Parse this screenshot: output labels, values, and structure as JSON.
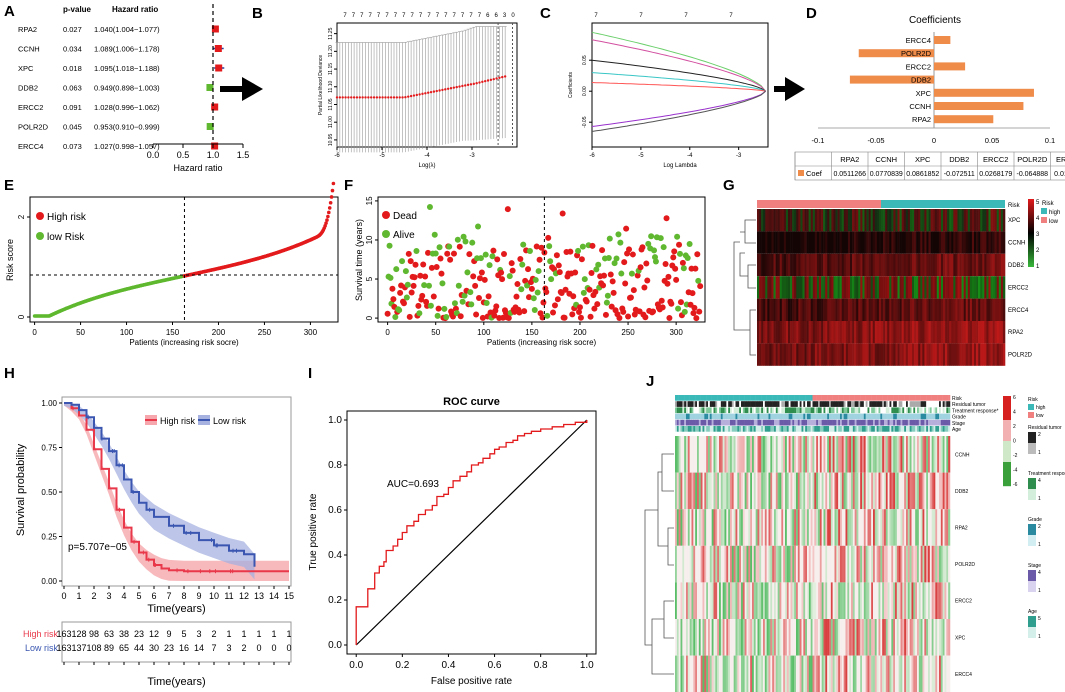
{
  "panels": {
    "a": "A",
    "b": "B",
    "c": "C",
    "d": "D",
    "e": "E",
    "f": "F",
    "g": "G",
    "h": "H",
    "i": "I",
    "j": "J"
  },
  "colors": {
    "red": "#e31a1c",
    "green": "#5fb82f",
    "orange": "#ef8c4a",
    "km_high": "#e8384a",
    "km_low": "#3a56b0",
    "teal": "#3bb9b9",
    "salmon": "#f08080",
    "ci_high": "#f6a7ad",
    "ci_low": "#a7b2e0"
  },
  "chart_data": [
    {
      "id": "A",
      "type": "forest",
      "headers": {
        "p": "p-value",
        "hr": "Hazard ratio"
      },
      "genes": [
        "RPA2",
        "CCNH",
        "XPC",
        "DDB2",
        "ERCC2",
        "POLR2D",
        "ERCC4"
      ],
      "p_values": [
        "0.027",
        "0.034",
        "0.018",
        "0.063",
        "0.091",
        "0.045",
        "0.073"
      ],
      "hr_text": [
        "1.040(1.004−1.077)",
        "1.089(1.006−1.178)",
        "1.095(1.018−1.188)",
        "0.949(0.898−1.003)",
        "1.028(0.996−1.062)",
        "0.953(0.910−0.999)",
        "1.027(0.998−1.057)"
      ],
      "hr": [
        1.04,
        1.089,
        1.095,
        0.949,
        1.028,
        0.953,
        1.027
      ],
      "ci_low": [
        1.004,
        1.006,
        1.018,
        0.898,
        0.996,
        0.91,
        0.998
      ],
      "ci_high": [
        1.077,
        1.178,
        1.188,
        1.003,
        1.062,
        0.999,
        1.057
      ],
      "xticks": [
        "0.0",
        "0.5",
        "1.0",
        "1.5"
      ],
      "xlabel": "Hazard ratio",
      "xlim": [
        0,
        1.5
      ]
    },
    {
      "id": "B",
      "type": "cv_deviance",
      "top_labels": [
        "7",
        "7",
        "7",
        "7",
        "7",
        "7",
        "7",
        "7",
        "7",
        "7",
        "7",
        "7",
        "7",
        "7",
        "7",
        "7",
        "7",
        "6",
        "6",
        "3",
        "0"
      ],
      "xticks": [
        "-6",
        "-5",
        "-4",
        "-3"
      ],
      "yticks": [
        "10.95",
        "11.00",
        "11.05",
        "11.10",
        "11.15",
        "11.20",
        "11.25"
      ],
      "xlabel": "Log(λ)",
      "ylabel": "Partial Likelihood Deviance",
      "xlim": [
        -6,
        -2.0
      ],
      "ylim": [
        10.93,
        11.28
      ]
    },
    {
      "id": "C",
      "type": "lasso_path",
      "top_labels": [
        "7",
        "7",
        "7",
        "7"
      ],
      "xticks": [
        "-6",
        "-5",
        "-4",
        "-3"
      ],
      "yticks": [
        "-0.05",
        "0.00",
        "0.05"
      ],
      "xlabel": "Log Lambda",
      "ylabel": "Coefficients",
      "xlim": [
        -6,
        -2.4
      ],
      "ylim": [
        -0.09,
        0.11
      ],
      "start_values": [
        0.095,
        0.083,
        0.05,
        0.03,
        0.014,
        -0.057,
        -0.065
      ],
      "series_colors": [
        "#6bcf6b",
        "#d24fa0",
        "#222222",
        "#3ac6c6",
        "#ff5555",
        "#9932cc",
        "#555555"
      ]
    },
    {
      "id": "D",
      "type": "bar",
      "title": "Coefficients",
      "categories": [
        "ERCC4",
        "POLR2D",
        "ERCC2",
        "DDB2",
        "XPC",
        "CCNH",
        "RPA2"
      ],
      "values": [
        0.014106,
        -0.064888,
        0.0268179,
        -0.072511,
        0.0861852,
        0.0770839,
        0.0511266
      ],
      "xticks": [
        "-0.1",
        "-0.05",
        "0",
        "0.05",
        "0.1"
      ],
      "xlim": [
        -0.1,
        0.1
      ],
      "table_header": [
        "RPA2",
        "CCNH",
        "XPC",
        "DDB2",
        "ERCC2",
        "POLR2D",
        "ERCC4"
      ],
      "table_row_label": "Coef",
      "table_values": [
        "0.0511266",
        "0.0770839",
        "0.0861852",
        "-0.072511",
        "0.0268179",
        "-0.064888",
        "0.014106"
      ]
    },
    {
      "id": "E",
      "type": "scatter",
      "legend": [
        "High risk",
        "low Risk"
      ],
      "xticks": [
        "0",
        "50",
        "100",
        "150",
        "200",
        "250",
        "300"
      ],
      "yticks": [
        "0",
        "2"
      ],
      "xlabel": "Patients (increasing risk socre)",
      "ylabel": "Risk score",
      "xlim": [
        -5,
        330
      ],
      "ylim": [
        -0.1,
        2.4
      ],
      "n": 326,
      "cutoff": 163
    },
    {
      "id": "F",
      "type": "scatter",
      "legend": [
        "Dead",
        "Alive"
      ],
      "xticks": [
        "0",
        "50",
        "100",
        "150",
        "200",
        "250",
        "300"
      ],
      "yticks": [
        "0",
        "5",
        "10",
        "15"
      ],
      "xlabel": "Patients (increasing risk socre)",
      "ylabel": "Survival time (years)",
      "xlim": [
        -10,
        330
      ],
      "ylim": [
        -0.5,
        15.5
      ],
      "cutoff": 163
    },
    {
      "id": "G",
      "type": "heatmap",
      "rows": [
        "XPC",
        "CCNH",
        "DDB2",
        "ERCC2",
        "ERCC4",
        "RPA2",
        "POLR2D"
      ],
      "annotation": "Risk",
      "legend_title": "Risk",
      "legend_items": [
        "high",
        "low"
      ],
      "scale_ticks": [
        "5",
        "4",
        "3",
        "2",
        "1"
      ]
    },
    {
      "id": "H",
      "type": "km",
      "legend": [
        "High risk",
        "Low risk"
      ],
      "pvalue": "p=5.707e−05",
      "xticks": [
        "0",
        "1",
        "2",
        "3",
        "4",
        "5",
        "6",
        "7",
        "8",
        "9",
        "10",
        "11",
        "12",
        "13",
        "14",
        "15"
      ],
      "yticks": [
        "0.00",
        "0.25",
        "0.50",
        "0.75",
        "1.00"
      ],
      "xlabel": "Time(years)",
      "ylabel": "Survival probability",
      "xlim": [
        0,
        15
      ],
      "ylim": [
        0,
        1
      ],
      "high_curve": [
        [
          0,
          1.0
        ],
        [
          0.5,
          0.97
        ],
        [
          1,
          0.93
        ],
        [
          1.5,
          0.85
        ],
        [
          2,
          0.74
        ],
        [
          2.5,
          0.63
        ],
        [
          3,
          0.52
        ],
        [
          3.5,
          0.4
        ],
        [
          4,
          0.3
        ],
        [
          4.5,
          0.22
        ],
        [
          5,
          0.16
        ],
        [
          5.5,
          0.12
        ],
        [
          6,
          0.09
        ],
        [
          6.5,
          0.07
        ],
        [
          7,
          0.06
        ],
        [
          8,
          0.055
        ],
        [
          10,
          0.055
        ],
        [
          12,
          0.055
        ],
        [
          15,
          0.055
        ]
      ],
      "low_curve": [
        [
          0,
          1.0
        ],
        [
          0.5,
          0.99
        ],
        [
          1,
          0.96
        ],
        [
          1.5,
          0.92
        ],
        [
          2,
          0.86
        ],
        [
          2.5,
          0.8
        ],
        [
          3,
          0.73
        ],
        [
          3.5,
          0.65
        ],
        [
          4,
          0.57
        ],
        [
          4.5,
          0.5
        ],
        [
          5,
          0.44
        ],
        [
          5.5,
          0.4
        ],
        [
          6,
          0.36
        ],
        [
          7,
          0.31
        ],
        [
          8,
          0.27
        ],
        [
          9,
          0.23
        ],
        [
          10,
          0.2
        ],
        [
          11,
          0.17
        ],
        [
          12,
          0.15
        ],
        [
          12.7,
          0.08
        ]
      ],
      "risk_table_title": "Time(years)",
      "risk_rows": [
        {
          "label": "High risk",
          "counts": [
            "163",
            "128",
            "98",
            "63",
            "38",
            "23",
            "12",
            "9",
            "5",
            "3",
            "2",
            "1",
            "1",
            "1",
            "1",
            "1"
          ]
        },
        {
          "label": "Low risk",
          "counts": [
            "163",
            "137",
            "108",
            "89",
            "65",
            "44",
            "30",
            "23",
            "16",
            "14",
            "7",
            "3",
            "2",
            "0",
            "0",
            "0"
          ]
        }
      ]
    },
    {
      "id": "I",
      "type": "roc",
      "title": "ROC curve",
      "auc": "AUC=0.693",
      "xticks": [
        "0.0",
        "0.2",
        "0.4",
        "0.6",
        "0.8",
        "1.0"
      ],
      "yticks": [
        "0.0",
        "0.2",
        "0.4",
        "0.6",
        "0.8",
        "1.0"
      ],
      "xlabel": "False positive rate",
      "ylabel": "True positive rate",
      "xlim": [
        0,
        1
      ],
      "ylim": [
        0,
        1
      ],
      "fpr": [
        0,
        0,
        0.02,
        0.05,
        0.06,
        0.08,
        0.1,
        0.12,
        0.13,
        0.16,
        0.18,
        0.2,
        0.22,
        0.25,
        0.27,
        0.3,
        0.33,
        0.35,
        0.38,
        0.4,
        0.42,
        0.45,
        0.48,
        0.5,
        0.53,
        0.55,
        0.58,
        0.6,
        0.62,
        0.65,
        0.68,
        0.7,
        0.73,
        0.76,
        0.8,
        0.85,
        0.9,
        0.95,
        1.0
      ],
      "tpr": [
        0,
        0.17,
        0.17,
        0.25,
        0.25,
        0.32,
        0.35,
        0.37,
        0.42,
        0.44,
        0.47,
        0.5,
        0.53,
        0.55,
        0.58,
        0.6,
        0.62,
        0.66,
        0.67,
        0.7,
        0.73,
        0.75,
        0.77,
        0.8,
        0.81,
        0.83,
        0.85,
        0.87,
        0.88,
        0.9,
        0.91,
        0.93,
        0.94,
        0.95,
        0.96,
        0.97,
        0.98,
        0.99,
        1.0
      ]
    },
    {
      "id": "J",
      "type": "heatmap",
      "annotations": [
        "Risk",
        "Residual tumor",
        "Treatment response*",
        "Grade",
        "Stage",
        "Age"
      ],
      "rows": [
        "CCNH",
        "DDB2",
        "RPA2",
        "POLR2D",
        "ERCC2",
        "XPC",
        "ERCC4"
      ],
      "scale_ticks": [
        "6",
        "4",
        "2",
        "0",
        "-2",
        "-4",
        "-6"
      ],
      "legends": [
        {
          "title": "Risk",
          "items": [
            "high",
            "low"
          ]
        },
        {
          "title": "Residual tumor",
          "items": [
            "2",
            "1"
          ]
        },
        {
          "title": "Treatment response",
          "items": [
            "4",
            "1"
          ]
        },
        {
          "title": "Grade",
          "items": [
            "2",
            "1"
          ]
        },
        {
          "title": "Stage",
          "items": [
            "4",
            "1"
          ]
        },
        {
          "title": "Age",
          "items": [
            "5",
            "1"
          ]
        }
      ]
    }
  ]
}
